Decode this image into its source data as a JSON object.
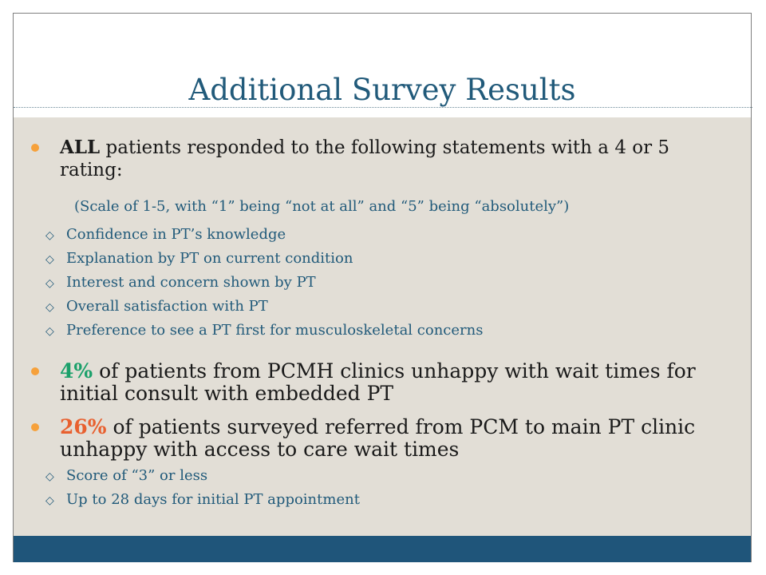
{
  "slide": {
    "title": "Additional Survey Results",
    "bullets": [
      {
        "lead": "ALL",
        "text": " patients responded to the following statements with a 4 or 5 rating:",
        "scale_note": "(Scale of 1-5, with “1” being “not at all” and “5” being “absolutely”)",
        "items": [
          "Confidence in PT’s knowledge",
          "Explanation by PT on current condition",
          "Interest and concern shown by PT",
          "Overall satisfaction with PT",
          "Preference to see a PT first for musculoskeletal concerns"
        ]
      },
      {
        "lead": "4%",
        "text": " of patients from PCMH clinics unhappy with wait times for initial consult with embedded PT"
      },
      {
        "lead": "26%",
        "text": " of patients surveyed referred from PCM to main PT clinic unhappy with access to care wait times",
        "items": [
          "Score of “3” or less",
          "Up to 28 days for initial PT appointment"
        ]
      }
    ]
  },
  "colors": {
    "title": "#215a7a",
    "content_bg": "#e2ded6",
    "footer_bar": "#1f557a",
    "bullet_dot": "#f6a13b",
    "highlight_green": "#1aa06a",
    "highlight_orange": "#e8602f"
  },
  "icons": {
    "bullet": "orange-dot-icon",
    "sub_bullet": "hollow-diamond-icon"
  }
}
